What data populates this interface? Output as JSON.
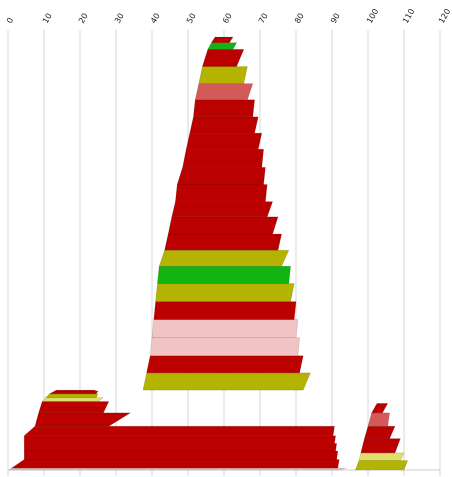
{
  "chart_data": {
    "type": "area",
    "x_ticks": [
      "0",
      "10",
      "20",
      "30",
      "40",
      "50",
      "60",
      "70",
      "80",
      "90",
      "100",
      "110",
      "120"
    ],
    "xlim": [
      0,
      120
    ],
    "grid": "vertical",
    "colors": {
      "red": "#bb0000",
      "olive": "#b4b400",
      "green": "#11b411",
      "pink": "#f0c4c4",
      "rose": "#d45a5a",
      "light_yellow": "#dede6a"
    },
    "stacks": [
      {
        "name": "left",
        "bands": [
          {
            "color": "pink",
            "l": [
              0.3,
              1.0
            ],
            "r": [
              92.0,
              94.0
            ]
          },
          {
            "color": "red",
            "l": [
              1.0,
              4.5
            ],
            "r": [
              91.6,
              92.0
            ]
          },
          {
            "color": "red",
            "l": [
              4.5,
              4.5
            ],
            "r": [
              91.3,
              91.6
            ]
          },
          {
            "color": "red",
            "l": [
              4.5,
              4.5
            ],
            "r": [
              91.0,
              91.3
            ]
          },
          {
            "color": "red",
            "l": [
              4.5,
              4.5
            ],
            "r": [
              90.7,
              91.0
            ]
          },
          {
            "color": "red",
            "l": [
              4.5,
              7.5
            ],
            "r": [
              90.3,
              90.7
            ]
          },
          {
            "color": "red",
            "l": [
              7.5,
              8.5
            ],
            "r": [
              28.0,
              34.0
            ]
          },
          {
            "color": "red",
            "l": [
              8.5,
              9.5
            ],
            "r": [
              26.5,
              28.0
            ]
          },
          {
            "color": "light_yellow",
            "l": [
              9.5,
              10.5
            ],
            "r": [
              25.0,
              26.5
            ]
          },
          {
            "color": "olive",
            "l": [
              10.5,
              11.5
            ],
            "r": [
              24.5,
              25.0
            ]
          },
          {
            "color": "red",
            "l": [
              11.5,
              13.0
            ],
            "r": [
              24.5,
              25.0
            ]
          },
          {
            "color": "red",
            "l": [
              13.0,
              13.5
            ],
            "r": [
              24.0,
              24.5
            ]
          }
        ],
        "levels": [
          0,
          2,
          11,
          20,
          28,
          36,
          46,
          60,
          72,
          76,
          80,
          83,
          84
        ]
      },
      {
        "name": "center",
        "bands": [
          {
            "color": "olive",
            "l": [
              37.5,
              38.5
            ],
            "r": [
              82.0,
              84.0
            ]
          },
          {
            "color": "red",
            "l": [
              38.5,
              39.5
            ],
            "r": [
              81.0,
              82.0
            ]
          },
          {
            "color": "pink",
            "l": [
              39.5,
              40.0
            ],
            "r": [
              80.5,
              81.0
            ]
          },
          {
            "color": "pink",
            "l": [
              40.0,
              40.5
            ],
            "r": [
              80.0,
              80.5
            ]
          },
          {
            "color": "red",
            "l": [
              40.5,
              41.0
            ],
            "r": [
              79.5,
              80.0
            ]
          },
          {
            "color": "olive",
            "l": [
              41.0,
              41.5
            ],
            "r": [
              78.5,
              79.5
            ]
          },
          {
            "color": "green",
            "l": [
              41.5,
              42.0
            ],
            "r": [
              78.0,
              78.5
            ]
          },
          {
            "color": "olive",
            "l": [
              42.0,
              43.5
            ],
            "r": [
              76.0,
              78.0
            ]
          },
          {
            "color": "red",
            "l": [
              43.5,
              44.5
            ],
            "r": [
              75.0,
              76.0
            ]
          },
          {
            "color": "red",
            "l": [
              44.5,
              45.5
            ],
            "r": [
              73.5,
              75.0
            ]
          },
          {
            "color": "red",
            "l": [
              45.5,
              46.5
            ],
            "r": [
              72.0,
              73.5
            ]
          },
          {
            "color": "red",
            "l": [
              46.5,
              47.0
            ],
            "r": [
              71.5,
              72.0
            ]
          },
          {
            "color": "red",
            "l": [
              47.0,
              48.5
            ],
            "r": [
              71.0,
              71.5
            ]
          },
          {
            "color": "red",
            "l": [
              48.5,
              49.5
            ],
            "r": [
              70.5,
              71.0
            ]
          },
          {
            "color": "red",
            "l": [
              49.5,
              50.5
            ],
            "r": [
              69.5,
              70.5
            ]
          },
          {
            "color": "red",
            "l": [
              50.5,
              51.5
            ],
            "r": [
              68.5,
              69.5
            ]
          },
          {
            "color": "red",
            "l": [
              51.5,
              52.0
            ],
            "r": [
              68.0,
              68.5
            ]
          },
          {
            "color": "rose",
            "l": [
              52.0,
              53.0
            ],
            "r": [
              66.5,
              68.0
            ]
          },
          {
            "color": "olive",
            "l": [
              53.0,
              54.0
            ],
            "r": [
              65.5,
              66.5
            ]
          },
          {
            "color": "red",
            "l": [
              54.0,
              55.5
            ],
            "r": [
              63.5,
              65.5
            ]
          },
          {
            "color": "green",
            "l": [
              55.5,
              56.5
            ],
            "r": [
              62.5,
              63.5
            ]
          },
          {
            "color": "red",
            "l": [
              56.5,
              57.5
            ],
            "r": [
              61.5,
              62.5
            ]
          }
        ],
        "levels": [
          84,
          102,
          120,
          139,
          158,
          177,
          196,
          214,
          231,
          248,
          266,
          282,
          300,
          318,
          337,
          354,
          371,
          389,
          406,
          424,
          442,
          449,
          455
        ]
      },
      {
        "name": "right",
        "bands": [
          {
            "color": "olive",
            "l": [
              96.5,
              97.5
            ],
            "r": [
              110.0,
              111.0
            ]
          },
          {
            "color": "light_yellow",
            "l": [
              97.5,
              98.0
            ],
            "r": [
              109.0,
              110.0
            ]
          },
          {
            "color": "red",
            "l": [
              98.0,
              99.0
            ],
            "r": [
              107.5,
              109.0
            ]
          },
          {
            "color": "red",
            "l": [
              99.0,
              100.0
            ],
            "r": [
              106.0,
              107.5
            ]
          },
          {
            "color": "rose",
            "l": [
              100.0,
              101.0
            ],
            "r": [
              105.5,
              106.0
            ]
          },
          {
            "color": "red",
            "l": [
              101.0,
              102.5
            ],
            "r": [
              104.0,
              105.5
            ]
          }
        ],
        "levels": [
          0,
          10,
          18,
          33,
          46,
          60,
          70
        ]
      }
    ]
  }
}
